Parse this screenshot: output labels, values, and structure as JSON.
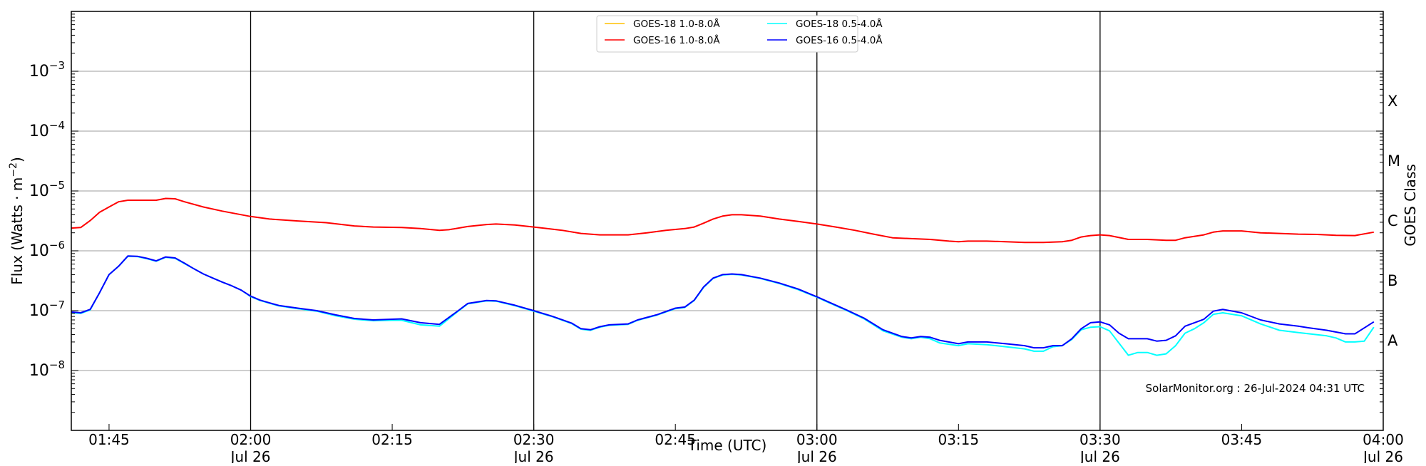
{
  "chart_data": {
    "type": "line",
    "xlabel": "Time (UTC)",
    "ylabel": "Flux (Watts · m",
    "ylabel_sup": "−2",
    "ylabel_close": ")",
    "right_label": "GOES Class",
    "watermark": "SolarMonitor.org : 26-Jul-2024 04:31 UTC",
    "xlim": [
      "01:41",
      "04:00"
    ],
    "ylim": [
      1e-09,
      0.01
    ],
    "yscale": "log",
    "grid": true,
    "legend_position": "top-center",
    "x_ticks": [
      {
        "time": "01:45",
        "label": "01:45",
        "date": ""
      },
      {
        "time": "02:00",
        "label": "02:00",
        "date": "Jul 26"
      },
      {
        "time": "02:15",
        "label": "02:15",
        "date": ""
      },
      {
        "time": "02:30",
        "label": "02:30",
        "date": "Jul 26"
      },
      {
        "time": "02:45",
        "label": "02:45",
        "date": ""
      },
      {
        "time": "03:00",
        "label": "03:00",
        "date": "Jul 26"
      },
      {
        "time": "03:15",
        "label": "03:15",
        "date": ""
      },
      {
        "time": "03:30",
        "label": "03:30",
        "date": "Jul 26"
      },
      {
        "time": "03:45",
        "label": "03:45",
        "date": ""
      },
      {
        "time": "04:00",
        "label": "04:00",
        "date": "Jul 26"
      }
    ],
    "y_ticks": [
      {
        "exp": -8,
        "label": "10",
        "sup": "−8"
      },
      {
        "exp": -7,
        "label": "10",
        "sup": "−7"
      },
      {
        "exp": -6,
        "label": "10",
        "sup": "−6"
      },
      {
        "exp": -5,
        "label": "10",
        "sup": "−5"
      },
      {
        "exp": -4,
        "label": "10",
        "sup": "−4"
      },
      {
        "exp": -3,
        "label": "10",
        "sup": "−3"
      }
    ],
    "vertical_lines": [
      "02:00",
      "02:30",
      "03:00",
      "03:30"
    ],
    "goes_classes": [
      {
        "label": "A",
        "exp": -7.5
      },
      {
        "label": "B",
        "exp": -6.5
      },
      {
        "label": "C",
        "exp": -5.5
      },
      {
        "label": "M",
        "exp": -4.5
      },
      {
        "label": "X",
        "exp": -3.5
      }
    ],
    "series": [
      {
        "name": "GOES-18 1.0-8.0Å",
        "color": "#ffc000",
        "x": [],
        "values": []
      },
      {
        "name": "GOES-16 1.0-8.0Å",
        "color": "#ff0000",
        "x": [
          "01:41",
          "01:42",
          "01:43",
          "01:44",
          "01:45",
          "01:46",
          "01:47",
          "01:49",
          "01:50",
          "01:51",
          "01:52",
          "01:53",
          "01:55",
          "01:57",
          "02:00",
          "02:02",
          "02:05",
          "02:08",
          "02:11",
          "02:13",
          "02:16",
          "02:18",
          "02:20",
          "02:21",
          "02:23",
          "02:25",
          "02:26",
          "02:28",
          "02:30",
          "02:33",
          "02:35",
          "02:37",
          "02:40",
          "02:42",
          "02:44",
          "02:46",
          "02:47",
          "02:48",
          "02:49",
          "02:50",
          "02:51",
          "02:52",
          "02:54",
          "02:56",
          "02:58",
          "03:00",
          "03:02",
          "03:04",
          "03:06",
          "03:08",
          "03:10",
          "03:12",
          "03:14",
          "03:15",
          "03:16",
          "03:18",
          "03:20",
          "03:22",
          "03:24",
          "03:26",
          "03:27",
          "03:28",
          "03:29",
          "03:30",
          "03:31",
          "03:33",
          "03:35",
          "03:37",
          "03:38",
          "03:39",
          "03:41",
          "03:42",
          "03:43",
          "03:45",
          "03:47",
          "03:49",
          "03:51",
          "03:53",
          "03:55",
          "03:57",
          "03:59"
        ],
        "values": [
          2.4e-06,
          2.45e-06,
          3.2e-06,
          4.4e-06,
          5.4e-06,
          6.6e-06,
          7e-06,
          7e-06,
          7e-06,
          7.5e-06,
          7.4e-06,
          6.6e-06,
          5.4e-06,
          4.6e-06,
          3.75e-06,
          3.4e-06,
          3.15e-06,
          2.95e-06,
          2.6e-06,
          2.5e-06,
          2.45e-06,
          2.35e-06,
          2.2e-06,
          2.25e-06,
          2.55e-06,
          2.75e-06,
          2.8e-06,
          2.7e-06,
          2.5e-06,
          2.2e-06,
          1.95e-06,
          1.85e-06,
          1.85e-06,
          2e-06,
          2.2e-06,
          2.35e-06,
          2.5e-06,
          2.9e-06,
          3.4e-06,
          3.8e-06,
          4e-06,
          4e-06,
          3.8e-06,
          3.4e-06,
          3.1e-06,
          2.8e-06,
          2.5e-06,
          2.2e-06,
          1.9e-06,
          1.65e-06,
          1.6e-06,
          1.55e-06,
          1.45e-06,
          1.42e-06,
          1.45e-06,
          1.45e-06,
          1.42e-06,
          1.38e-06,
          1.38e-06,
          1.42e-06,
          1.5e-06,
          1.7e-06,
          1.8e-06,
          1.85e-06,
          1.8e-06,
          1.55e-06,
          1.55e-06,
          1.5e-06,
          1.5e-06,
          1.65e-06,
          1.85e-06,
          2.05e-06,
          2.15e-06,
          2.15e-06,
          2e-06,
          1.95e-06,
          1.9e-06,
          1.88e-06,
          1.82e-06,
          1.8e-06,
          2.05e-06
        ]
      },
      {
        "name": "GOES-18 0.5-4.0Å",
        "color": "#00ffff",
        "x": [
          "01:41",
          "01:42",
          "01:43",
          "01:44",
          "01:45",
          "01:46",
          "01:47",
          "01:48",
          "01:49",
          "01:50",
          "01:51",
          "01:52",
          "01:53",
          "01:54",
          "01:55",
          "01:56",
          "01:57",
          "01:58",
          "01:59",
          "02:00",
          "02:01",
          "02:02",
          "02:03",
          "02:05",
          "02:07",
          "02:09",
          "02:11",
          "02:13",
          "02:15",
          "02:16",
          "02:18",
          "02:20",
          "02:22",
          "02:23",
          "02:25",
          "02:26",
          "02:28",
          "02:30",
          "02:32",
          "02:34",
          "02:35",
          "02:36",
          "02:37",
          "02:38",
          "02:40",
          "02:41",
          "02:43",
          "02:45",
          "02:46",
          "02:47",
          "02:48",
          "02:49",
          "02:50",
          "02:51",
          "02:52",
          "02:54",
          "02:56",
          "02:58",
          "03:00",
          "03:01",
          "03:03",
          "03:05",
          "03:07",
          "03:09",
          "03:10",
          "03:11",
          "03:12",
          "03:13",
          "03:15",
          "03:16",
          "03:18",
          "03:20",
          "03:22",
          "03:23",
          "03:24",
          "03:25",
          "03:26",
          "03:27",
          "03:28",
          "03:29",
          "03:30",
          "03:31",
          "03:33",
          "03:34",
          "03:35",
          "03:36",
          "03:37",
          "03:38",
          "03:39",
          "03:40",
          "03:41",
          "03:42",
          "03:43",
          "03:45",
          "03:47",
          "03:49",
          "03:51",
          "03:54",
          "03:55",
          "03:56",
          "03:57",
          "03:58",
          "03:59"
        ],
        "values": [
          9.2e-08,
          9e-08,
          1.03e-07,
          2e-07,
          4e-07,
          5.5e-07,
          8.1e-07,
          8e-07,
          7.4e-07,
          6.7e-07,
          7.8e-07,
          7.5e-07,
          6.1e-07,
          5e-07,
          4.1e-07,
          3.5e-07,
          3e-07,
          2.6e-07,
          2.2e-07,
          1.72e-07,
          1.48e-07,
          1.33e-07,
          1.2e-07,
          1.08e-07,
          9.8e-08,
          8.2e-08,
          7.2e-08,
          6.8e-08,
          6.9e-08,
          6.9e-08,
          5.8e-08,
          5.5e-08,
          9.8e-08,
          1.3e-07,
          1.46e-07,
          1.44e-07,
          1.21e-07,
          9.8e-08,
          7.9e-08,
          6.1e-08,
          4.9e-08,
          4.7e-08,
          5.3e-08,
          5.7e-08,
          5.9e-08,
          6.9e-08,
          8.4e-08,
          1.08e-07,
          1.13e-07,
          1.48e-07,
          2.45e-07,
          3.45e-07,
          3.95e-07,
          4.05e-07,
          3.95e-07,
          3.45e-07,
          2.85e-07,
          2.25e-07,
          1.68e-07,
          1.42e-07,
          1.03e-07,
          7.3e-08,
          4.6e-08,
          3.6e-08,
          3.4e-08,
          3.6e-08,
          3.4e-08,
          2.9e-08,
          2.6e-08,
          2.8e-08,
          2.7e-08,
          2.5e-08,
          2.3e-08,
          2.1e-08,
          2.1e-08,
          2.5e-08,
          2.6e-08,
          3.3e-08,
          4.8e-08,
          5.3e-08,
          5.4e-08,
          4.6e-08,
          1.8e-08,
          2e-08,
          2e-08,
          1.8e-08,
          1.9e-08,
          2.6e-08,
          4.2e-08,
          5e-08,
          6.3e-08,
          8.7e-08,
          9.2e-08,
          8.2e-08,
          6e-08,
          4.7e-08,
          4.3e-08,
          3.8e-08,
          3.5e-08,
          3e-08,
          3e-08,
          3.1e-08,
          5.3e-08
        ]
      },
      {
        "name": "GOES-16 0.5-4.0Å",
        "color": "#0000ff",
        "x": [
          "01:41",
          "01:42",
          "01:43",
          "01:44",
          "01:45",
          "01:46",
          "01:47",
          "01:48",
          "01:49",
          "01:50",
          "01:51",
          "01:52",
          "01:53",
          "01:54",
          "01:55",
          "01:56",
          "01:57",
          "01:58",
          "01:59",
          "02:00",
          "02:01",
          "02:02",
          "02:03",
          "02:05",
          "02:07",
          "02:09",
          "02:11",
          "02:13",
          "02:15",
          "02:16",
          "02:18",
          "02:20",
          "02:22",
          "02:23",
          "02:25",
          "02:26",
          "02:28",
          "02:30",
          "02:32",
          "02:34",
          "02:35",
          "02:36",
          "02:37",
          "02:38",
          "02:40",
          "02:41",
          "02:43",
          "02:45",
          "02:46",
          "02:47",
          "02:48",
          "02:49",
          "02:50",
          "02:51",
          "02:52",
          "02:54",
          "02:56",
          "02:58",
          "03:00",
          "03:01",
          "03:03",
          "03:05",
          "03:07",
          "03:09",
          "03:10",
          "03:11",
          "03:12",
          "03:13",
          "03:15",
          "03:16",
          "03:18",
          "03:20",
          "03:22",
          "03:23",
          "03:24",
          "03:25",
          "03:26",
          "03:27",
          "03:28",
          "03:29",
          "03:30",
          "03:31",
          "03:32",
          "03:33",
          "03:34",
          "03:35",
          "03:36",
          "03:37",
          "03:38",
          "03:39",
          "03:40",
          "03:41",
          "03:42",
          "03:43",
          "03:45",
          "03:47",
          "03:49",
          "03:51",
          "03:52",
          "03:54",
          "03:56",
          "03:57",
          "03:59"
        ],
        "values": [
          9.5e-08,
          9.2e-08,
          1.05e-07,
          2e-07,
          4e-07,
          5.5e-07,
          8.2e-07,
          8.1e-07,
          7.5e-07,
          6.8e-07,
          7.9e-07,
          7.6e-07,
          6.2e-07,
          5e-07,
          4.1e-07,
          3.5e-07,
          3e-07,
          2.6e-07,
          2.2e-07,
          1.75e-07,
          1.5e-07,
          1.35e-07,
          1.22e-07,
          1.1e-07,
          1e-07,
          8.5e-08,
          7.4e-08,
          7e-08,
          7.2e-08,
          7.3e-08,
          6.3e-08,
          5.9e-08,
          1e-07,
          1.32e-07,
          1.48e-07,
          1.46e-07,
          1.23e-07,
          1e-07,
          8e-08,
          6.2e-08,
          5e-08,
          4.8e-08,
          5.4e-08,
          5.8e-08,
          6e-08,
          7e-08,
          8.5e-08,
          1.1e-07,
          1.15e-07,
          1.5e-07,
          2.5e-07,
          3.5e-07,
          4e-07,
          4.1e-07,
          4e-07,
          3.5e-07,
          2.9e-07,
          2.3e-07,
          1.7e-07,
          1.45e-07,
          1.05e-07,
          7.5e-08,
          4.8e-08,
          3.7e-08,
          3.5e-08,
          3.7e-08,
          3.6e-08,
          3.2e-08,
          2.8e-08,
          3e-08,
          3e-08,
          2.8e-08,
          2.6e-08,
          2.4e-08,
          2.4e-08,
          2.6e-08,
          2.6e-08,
          3.4e-08,
          5e-08,
          6.3e-08,
          6.5e-08,
          5.8e-08,
          4.2e-08,
          3.4e-08,
          3.4e-08,
          3.4e-08,
          3.1e-08,
          3.2e-08,
          3.8e-08,
          5.5e-08,
          6.3e-08,
          7.2e-08,
          9.8e-08,
          1.05e-07,
          9.2e-08,
          7e-08,
          6e-08,
          5.5e-08,
          5.2e-08,
          4.7e-08,
          4.1e-08,
          4.1e-08,
          6.5e-08
        ]
      }
    ],
    "legend_order": [
      0,
      2,
      1,
      3
    ]
  }
}
